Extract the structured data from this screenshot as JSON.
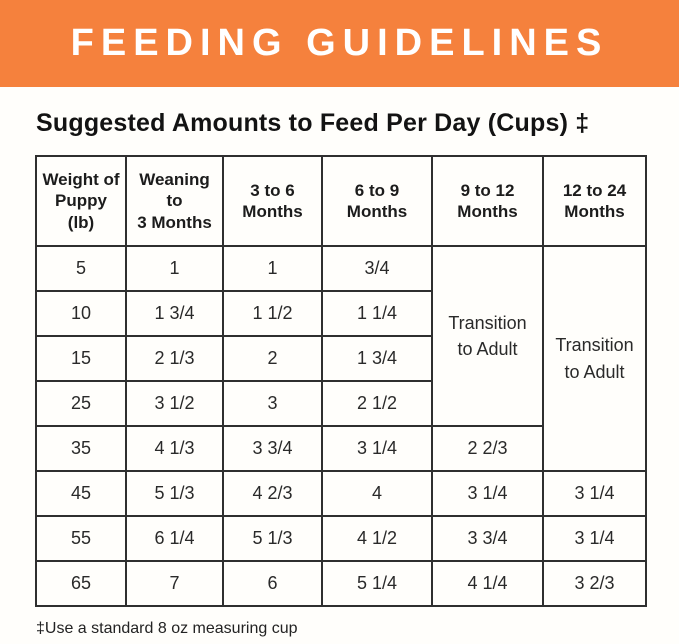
{
  "banner": {
    "title": "FEEDING GUIDELINES",
    "bg_color": "#f5813d",
    "text_color": "#ffffff"
  },
  "subtitle": "Suggested Amounts to Feed Per Day (Cups) ‡",
  "table": {
    "headers": [
      "Weight of\nPuppy (lb)",
      "Weaning to\n3 Months",
      "3 to 6\nMonths",
      "6 to 9\nMonths",
      "9 to 12\nMonths",
      "12 to 24\nMonths"
    ],
    "transition_label": "Transition\nto Adult",
    "rows": [
      {
        "weight": "5",
        "cells": [
          {
            "v": "1"
          },
          {
            "v": "1"
          },
          {
            "v": "3/4"
          },
          {
            "v": "Transition\nto Adult",
            "rowspan": 4,
            "transition": true
          },
          {
            "v": "Transition\nto Adult",
            "rowspan": 5,
            "transition": true
          }
        ]
      },
      {
        "weight": "10",
        "cells": [
          {
            "v": "1 3/4"
          },
          {
            "v": "1 1/2"
          },
          {
            "v": "1 1/4"
          }
        ]
      },
      {
        "weight": "15",
        "cells": [
          {
            "v": "2 1/3"
          },
          {
            "v": "2"
          },
          {
            "v": "1 3/4"
          }
        ]
      },
      {
        "weight": "25",
        "cells": [
          {
            "v": "3 1/2"
          },
          {
            "v": "3"
          },
          {
            "v": "2 1/2"
          }
        ]
      },
      {
        "weight": "35",
        "cells": [
          {
            "v": "4 1/3"
          },
          {
            "v": "3 3/4"
          },
          {
            "v": "3 1/4"
          },
          {
            "v": "2 2/3"
          }
        ]
      },
      {
        "weight": "45",
        "cells": [
          {
            "v": "5 1/3"
          },
          {
            "v": "4 2/3"
          },
          {
            "v": "4"
          },
          {
            "v": "3 1/4"
          },
          {
            "v": "3 1/4"
          }
        ]
      },
      {
        "weight": "55",
        "cells": [
          {
            "v": "6 1/4"
          },
          {
            "v": "5 1/3"
          },
          {
            "v": "4 1/2"
          },
          {
            "v": "3 3/4"
          },
          {
            "v": "3 1/4"
          }
        ]
      },
      {
        "weight": "65",
        "cells": [
          {
            "v": "7"
          },
          {
            "v": "6"
          },
          {
            "v": "5 1/4"
          },
          {
            "v": "4 1/4"
          },
          {
            "v": "3 2/3"
          }
        ]
      }
    ]
  },
  "footnote": "‡Use a standard 8 oz measuring cup"
}
